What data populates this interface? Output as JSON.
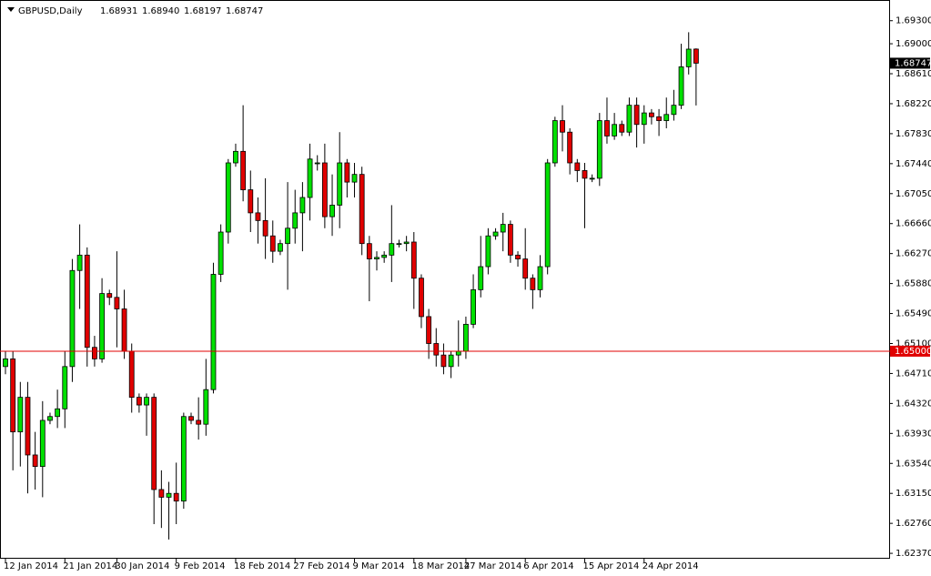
{
  "chart_data": {
    "type": "candlestick",
    "title": "GBPUSD,Daily",
    "header_values": [
      "1.68931",
      "1.68940",
      "1.68197",
      "1.68747"
    ],
    "categories": [
      "12 Jan 2014",
      null,
      null,
      null,
      null,
      null,
      null,
      null,
      "21 Jan 2014",
      null,
      null,
      null,
      null,
      null,
      null,
      "30 Jan 2014",
      null,
      null,
      null,
      null,
      null,
      null,
      null,
      "9 Feb 2014",
      null,
      null,
      null,
      null,
      null,
      null,
      null,
      "18 Feb 2014",
      null,
      null,
      null,
      null,
      null,
      null,
      null,
      "27 Feb 2014",
      null,
      null,
      null,
      null,
      null,
      null,
      null,
      "9 Mar 2014",
      null,
      null,
      null,
      null,
      null,
      null,
      null,
      "18 Mar 2014",
      null,
      null,
      null,
      null,
      null,
      null,
      "27 Mar 2014",
      null,
      null,
      null,
      null,
      null,
      null,
      null,
      "6 Apr 2014",
      null,
      null,
      null,
      null,
      null,
      null,
      null,
      "15 Apr 2014",
      null,
      null,
      null,
      null,
      null,
      null,
      null,
      "24 Apr 2014",
      null,
      null,
      null,
      null,
      null,
      null,
      null
    ],
    "open": [
      1.648,
      1.649,
      1.6395,
      1.644,
      1.6365,
      1.635,
      1.641,
      1.6415,
      1.6425,
      1.648,
      1.6605,
      1.6625,
      1.6505,
      1.649,
      1.6575,
      1.657,
      1.6555,
      1.65,
      1.644,
      1.643,
      1.644,
      1.632,
      1.631,
      1.6315,
      1.6305,
      1.6415,
      1.641,
      1.6405,
      1.645,
      1.66,
      1.6655,
      1.6745,
      1.676,
      1.671,
      1.668,
      1.667,
      1.665,
      1.663,
      1.664,
      1.666,
      1.668,
      1.67,
      1.6745,
      1.6745,
      1.6675,
      1.669,
      1.6745,
      1.672,
      1.673,
      1.664,
      1.662,
      1.6622,
      1.6625,
      1.664,
      1.664,
      1.6642,
      1.6595,
      1.6545,
      1.651,
      1.6495,
      1.648,
      1.6495,
      1.65,
      1.6535,
      1.658,
      1.661,
      1.665,
      1.6655,
      1.6665,
      1.6625,
      1.662,
      1.6595,
      1.658,
      1.661,
      1.6745,
      1.68,
      1.6785,
      1.6745,
      1.6735,
      1.6725,
      1.6725,
      1.68,
      1.678,
      1.6795,
      1.6785,
      1.682,
      1.6795,
      1.681,
      1.6805,
      1.68,
      1.6808,
      1.682,
      1.687,
      1.68931
    ],
    "high": [
      1.65,
      1.65,
      1.646,
      1.646,
      1.6395,
      1.6435,
      1.642,
      1.645,
      1.65,
      1.662,
      1.6665,
      1.6635,
      1.652,
      1.6595,
      1.658,
      1.663,
      1.658,
      1.651,
      1.6445,
      1.6445,
      1.6445,
      1.6345,
      1.633,
      1.6355,
      1.642,
      1.642,
      1.644,
      1.649,
      1.6615,
      1.6665,
      1.675,
      1.677,
      1.682,
      1.6735,
      1.67,
      1.6725,
      1.667,
      1.6645,
      1.672,
      1.671,
      1.672,
      1.677,
      1.6755,
      1.677,
      1.673,
      1.6785,
      1.675,
      1.6745,
      1.674,
      1.665,
      1.663,
      1.663,
      1.669,
      1.6645,
      1.665,
      1.6655,
      1.66,
      1.6555,
      1.653,
      1.651,
      1.65,
      1.654,
      1.6545,
      1.66,
      1.665,
      1.666,
      1.666,
      1.668,
      1.667,
      1.663,
      1.666,
      1.66,
      1.6625,
      1.675,
      1.6805,
      1.682,
      1.679,
      1.675,
      1.6745,
      1.673,
      1.681,
      1.683,
      1.681,
      1.68,
      1.683,
      1.683,
      1.682,
      1.6815,
      1.6815,
      1.683,
      1.684,
      1.69,
      1.6915,
      1.6894
    ],
    "low": [
      1.647,
      1.6345,
      1.635,
      1.6315,
      1.632,
      1.631,
      1.6405,
      1.64,
      1.64,
      1.646,
      1.6555,
      1.648,
      1.648,
      1.6485,
      1.656,
      1.6505,
      1.649,
      1.642,
      1.642,
      1.639,
      1.6275,
      1.627,
      1.6255,
      1.6275,
      1.6295,
      1.6405,
      1.6385,
      1.639,
      1.6445,
      1.659,
      1.664,
      1.674,
      1.6695,
      1.6655,
      1.664,
      1.662,
      1.6615,
      1.6625,
      1.658,
      1.664,
      1.663,
      1.667,
      1.6735,
      1.666,
      1.665,
      1.666,
      1.67,
      1.67,
      1.6625,
      1.6565,
      1.6605,
      1.6615,
      1.659,
      1.6635,
      1.663,
      1.6555,
      1.653,
      1.649,
      1.648,
      1.647,
      1.6465,
      1.648,
      1.649,
      1.653,
      1.657,
      1.66,
      1.6645,
      1.663,
      1.6615,
      1.661,
      1.658,
      1.6555,
      1.657,
      1.66,
      1.674,
      1.676,
      1.673,
      1.672,
      1.666,
      1.672,
      1.6715,
      1.677,
      1.6775,
      1.678,
      1.678,
      1.6765,
      1.677,
      1.6795,
      1.678,
      1.679,
      1.68,
      1.6815,
      1.686,
      1.68197
    ],
    "close": [
      1.649,
      1.6395,
      1.644,
      1.6365,
      1.635,
      1.641,
      1.6415,
      1.6425,
      1.648,
      1.6605,
      1.6625,
      1.6505,
      1.649,
      1.6575,
      1.657,
      1.6555,
      1.65,
      1.644,
      1.643,
      1.644,
      1.632,
      1.631,
      1.6315,
      1.6305,
      1.6415,
      1.641,
      1.6405,
      1.645,
      1.66,
      1.6655,
      1.6745,
      1.676,
      1.671,
      1.668,
      1.667,
      1.665,
      1.663,
      1.664,
      1.666,
      1.668,
      1.67,
      1.675,
      1.6745,
      1.6675,
      1.669,
      1.6745,
      1.672,
      1.673,
      1.664,
      1.662,
      1.6622,
      1.6625,
      1.664,
      1.664,
      1.6642,
      1.6595,
      1.6545,
      1.651,
      1.6495,
      1.648,
      1.6495,
      1.65,
      1.6535,
      1.658,
      1.661,
      1.665,
      1.6655,
      1.6665,
      1.6625,
      1.662,
      1.6595,
      1.658,
      1.661,
      1.6745,
      1.68,
      1.6785,
      1.6745,
      1.6735,
      1.6725,
      1.6725,
      1.68,
      1.678,
      1.6795,
      1.6785,
      1.682,
      1.6795,
      1.681,
      1.6805,
      1.68,
      1.6808,
      1.682,
      1.687,
      1.6893,
      1.68747
    ],
    "up_color": "#00e000",
    "down_color": "#e00000",
    "ylim": [
      1.623,
      1.6951
    ],
    "yticks": [
      {
        "value": 1.6237,
        "label": "1.62370"
      },
      {
        "value": 1.6276,
        "label": "1.62760"
      },
      {
        "value": 1.6315,
        "label": "1.63150"
      },
      {
        "value": 1.6354,
        "label": "1.63540"
      },
      {
        "value": 1.6393,
        "label": "1.63930"
      },
      {
        "value": 1.6432,
        "label": "1.64320"
      },
      {
        "value": 1.6471,
        "label": "1.64710"
      },
      {
        "value": 1.651,
        "label": "1.65100"
      },
      {
        "value": 1.6549,
        "label": "1.65490"
      },
      {
        "value": 1.6588,
        "label": "1.65880"
      },
      {
        "value": 1.6627,
        "label": "1.66270"
      },
      {
        "value": 1.6666,
        "label": "1.66660"
      },
      {
        "value": 1.6705,
        "label": "1.67050"
      },
      {
        "value": 1.6744,
        "label": "1.67440"
      },
      {
        "value": 1.6783,
        "label": "1.67830"
      },
      {
        "value": 1.6822,
        "label": "1.68220"
      },
      {
        "value": 1.6861,
        "label": "1.68610"
      },
      {
        "value": 1.69,
        "label": "1.69000"
      },
      {
        "value": 1.693,
        "label": "1.69300"
      }
    ],
    "hline": {
      "value": 1.65,
      "label": "1.65000",
      "color": "#e00000"
    },
    "last_price": {
      "value": 1.68747,
      "label": "1.68747"
    }
  }
}
